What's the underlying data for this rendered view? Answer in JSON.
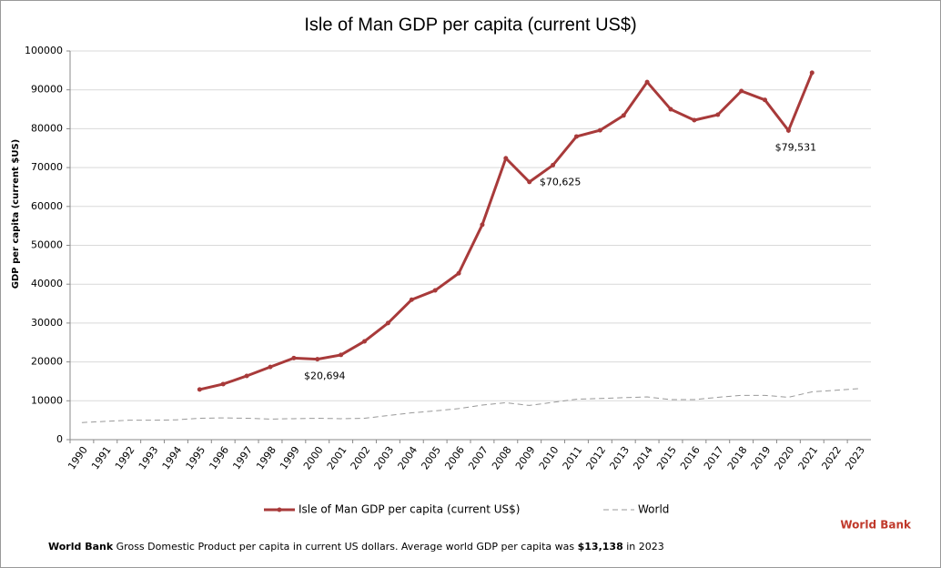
{
  "chart_data": {
    "type": "line",
    "title": "Isle of Man GDP per capita (current US$)",
    "y_label": "GDP per capita (current $US)",
    "categories": [
      "1990",
      "1991",
      "1992",
      "1993",
      "1994",
      "1995",
      "1996",
      "1997",
      "1998",
      "1999",
      "2000",
      "2001",
      "2002",
      "2003",
      "2004",
      "2005",
      "2006",
      "2007",
      "2008",
      "2009",
      "2010",
      "2011",
      "2012",
      "2013",
      "2014",
      "2015",
      "2016",
      "2017",
      "2018",
      "2019",
      "2020",
      "2021",
      "2022",
      "2023"
    ],
    "series": [
      {
        "name": "Isle of Man GDP per capita (current US$)",
        "color": "#a83a3a",
        "values": [
          null,
          null,
          null,
          null,
          null,
          12900,
          14300,
          16400,
          18700,
          21000,
          20694,
          21800,
          25300,
          30000,
          36000,
          38400,
          42800,
          55300,
          72400,
          66300,
          70625,
          78000,
          79600,
          83400,
          92000,
          85000,
          82200,
          83600,
          89700,
          87400,
          79531,
          94400,
          null,
          null
        ],
        "value_labels": [
          null,
          null,
          null,
          null,
          null,
          null,
          null,
          null,
          null,
          null,
          "$20,694",
          null,
          null,
          null,
          null,
          null,
          null,
          null,
          null,
          null,
          "$70,625",
          null,
          null,
          null,
          null,
          null,
          null,
          null,
          null,
          null,
          "$79,531",
          null,
          null,
          null
        ]
      },
      {
        "name": "World",
        "color": "#999999",
        "dashed": true,
        "values": [
          4400,
          4700,
          5000,
          5000,
          5100,
          5500,
          5600,
          5500,
          5300,
          5400,
          5500,
          5400,
          5500,
          6200,
          6900,
          7400,
          8000,
          8900,
          9500,
          8800,
          9600,
          10400,
          10600,
          10800,
          11000,
          10300,
          10300,
          10900,
          11400,
          11400,
          10900,
          12300,
          12700,
          13138
        ]
      }
    ],
    "ylim": [
      0,
      100000
    ],
    "yticks": [
      0,
      10000,
      20000,
      30000,
      40000,
      50000,
      60000,
      70000,
      80000,
      90000,
      100000
    ],
    "grid": true,
    "source": "World Bank",
    "footer": {
      "lead": "World Bank",
      "text": "Gross Domestic Product per capita in current US dollars.  Average world GDP per capita was",
      "highlight": "$13,138",
      "tail": "in 2023"
    }
  }
}
